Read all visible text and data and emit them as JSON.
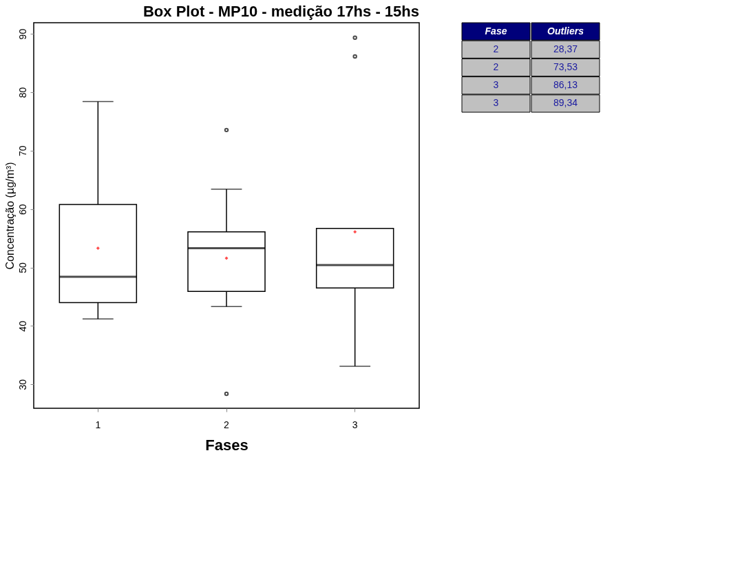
{
  "chart_data": {
    "type": "box",
    "title": "Box Plot - MP10 - medição 17hs - 15hs",
    "xlabel": "Fases",
    "ylabel": "Concentração (µg/m³)",
    "categories": [
      "1",
      "2",
      "3"
    ],
    "boxes": [
      {
        "low": 41.2,
        "q1": 44.0,
        "median": 48.4,
        "q3": 60.8,
        "high": 78.4,
        "mean": 53.3
      },
      {
        "low": 43.3,
        "q1": 45.9,
        "median": 53.3,
        "q3": 56.1,
        "high": 63.4,
        "mean": 51.6,
        "outliers": [
          28.37,
          73.53
        ]
      },
      {
        "low": 33.1,
        "q1": 46.5,
        "median": 50.4,
        "q3": 56.7,
        "high": 56.7,
        "mean": 56.1,
        "outliers": [
          86.13,
          89.34
        ]
      }
    ],
    "ylim": [
      25.9,
      91.9
    ],
    "yticks": [
      30,
      40,
      50,
      60,
      70,
      80,
      90
    ],
    "grid": false,
    "annotations": [
      "Fase",
      "Outliers",
      "2",
      "28,37",
      "2",
      "73,53",
      "3",
      "86,13",
      "3",
      "89,34"
    ]
  }
}
